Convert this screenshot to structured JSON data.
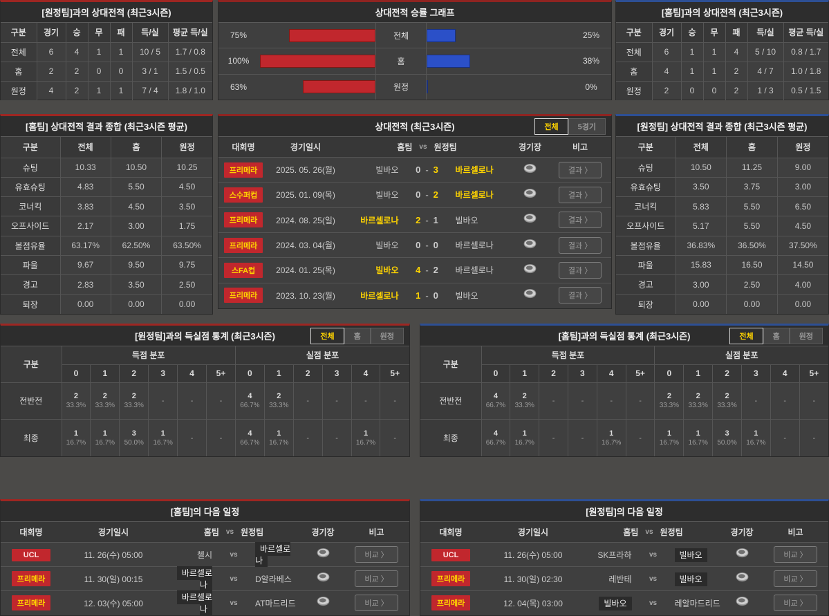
{
  "colors": {
    "accent_red": "#c1272d",
    "accent_blue": "#2b50c8",
    "highlight_yellow": "#ffd400"
  },
  "record_away": {
    "title": "[원정팀]과의 상대전적 (최근3시즌)",
    "headers": [
      "구분",
      "경기",
      "승",
      "무",
      "패",
      "득/실",
      "평균 득/실"
    ],
    "rows": [
      {
        "label": "전체",
        "values": [
          "6",
          "4",
          "1",
          "1",
          "10 / 5",
          "1.7 / 0.8"
        ]
      },
      {
        "label": "홈",
        "values": [
          "2",
          "2",
          "0",
          "0",
          "3 / 1",
          "1.5 / 0.5"
        ]
      },
      {
        "label": "원정",
        "values": [
          "4",
          "2",
          "1",
          "1",
          "7 / 4",
          "1.8 / 1.0"
        ]
      }
    ]
  },
  "record_home": {
    "title": "[홈팀]과의 상대전적 (최근3시즌)",
    "headers": [
      "구분",
      "경기",
      "승",
      "무",
      "패",
      "득/실",
      "평균 득/실"
    ],
    "rows": [
      {
        "label": "전체",
        "values": [
          "6",
          "1",
          "1",
          "4",
          "5 / 10",
          "0.8 / 1.7"
        ]
      },
      {
        "label": "홈",
        "values": [
          "4",
          "1",
          "1",
          "2",
          "4 / 7",
          "1.0 / 1.8"
        ]
      },
      {
        "label": "원정",
        "values": [
          "2",
          "0",
          "0",
          "2",
          "1 / 3",
          "0.5 / 1.5"
        ]
      }
    ]
  },
  "winrate_graph": {
    "title": "상대전적 승률 그래프",
    "chart_data": {
      "type": "bar",
      "categories": [
        "전체",
        "홈",
        "원정"
      ],
      "series": [
        {
          "name": "left-red",
          "values": [
            75,
            100,
            63
          ]
        },
        {
          "name": "right-blue",
          "values": [
            25,
            38,
            0
          ]
        }
      ]
    },
    "rows": [
      {
        "label": "전체",
        "left_pct": "75%",
        "left_value": 75,
        "right_pct": "25%",
        "right_value": 25
      },
      {
        "label": "홈",
        "left_pct": "100%",
        "left_value": 100,
        "right_pct": "38%",
        "right_value": 38
      },
      {
        "label": "원정",
        "left_pct": "63%",
        "left_value": 63,
        "right_pct": "0%",
        "right_value": 0
      }
    ]
  },
  "home_summary": {
    "title": "[홈팀] 상대전적 결과 종합 (최근3시즌 평균)",
    "headers": [
      "구분",
      "전체",
      "홈",
      "원정"
    ],
    "rows": [
      {
        "label": "슈팅",
        "values": [
          "10.33",
          "10.50",
          "10.25"
        ]
      },
      {
        "label": "유효슈팅",
        "values": [
          "4.83",
          "5.50",
          "4.50"
        ]
      },
      {
        "label": "코너킥",
        "values": [
          "3.83",
          "4.50",
          "3.50"
        ]
      },
      {
        "label": "오프사이드",
        "values": [
          "2.17",
          "3.00",
          "1.75"
        ]
      },
      {
        "label": "볼점유율",
        "values": [
          "63.17%",
          "62.50%",
          "63.50%"
        ]
      },
      {
        "label": "파울",
        "values": [
          "9.67",
          "9.50",
          "9.75"
        ]
      },
      {
        "label": "경고",
        "values": [
          "2.83",
          "3.50",
          "2.50"
        ]
      },
      {
        "label": "퇴장",
        "values": [
          "0.00",
          "0.00",
          "0.00"
        ]
      }
    ]
  },
  "away_summary": {
    "title": "[원정팀] 상대전적 결과 종합 (최근3시즌 평균)",
    "headers": [
      "구분",
      "전체",
      "홈",
      "원정"
    ],
    "rows": [
      {
        "label": "슈팅",
        "values": [
          "10.50",
          "11.25",
          "9.00"
        ]
      },
      {
        "label": "유효슈팅",
        "values": [
          "3.50",
          "3.75",
          "3.00"
        ]
      },
      {
        "label": "코너킥",
        "values": [
          "5.83",
          "5.50",
          "6.50"
        ]
      },
      {
        "label": "오프사이드",
        "values": [
          "5.17",
          "5.50",
          "4.50"
        ]
      },
      {
        "label": "볼점유율",
        "values": [
          "36.83%",
          "36.50%",
          "37.50%"
        ]
      },
      {
        "label": "파울",
        "values": [
          "15.83",
          "16.50",
          "14.50"
        ]
      },
      {
        "label": "경고",
        "values": [
          "3.00",
          "2.50",
          "4.00"
        ]
      },
      {
        "label": "퇴장",
        "values": [
          "0.00",
          "0.00",
          "0.00"
        ]
      }
    ]
  },
  "h2h_matches": {
    "title": "상대전적 (최근3시즌)",
    "tabs": [
      "전체",
      "5경기"
    ],
    "headers": {
      "league": "대회명",
      "date": "경기일시",
      "home": "홈팀",
      "vs": "vs",
      "away": "원정팀",
      "stadium": "경기장",
      "note": "비고"
    },
    "button_label": "결과 〉",
    "rows": [
      {
        "league": "프리메라",
        "variant": "primera",
        "date": "2025. 05. 26(월)",
        "home": "빌바오",
        "home_score": "0",
        "away_score": "3",
        "away": "바르셀로나",
        "winner": "away"
      },
      {
        "league": "스수퍼컵",
        "variant": "primera",
        "date": "2025. 01. 09(목)",
        "home": "빌바오",
        "home_score": "0",
        "away_score": "2",
        "away": "바르셀로나",
        "winner": "away"
      },
      {
        "league": "프리메라",
        "variant": "primera",
        "date": "2024. 08. 25(일)",
        "home": "바르셀로나",
        "home_score": "2",
        "away_score": "1",
        "away": "빌바오",
        "winner": "home"
      },
      {
        "league": "프리메라",
        "variant": "primera",
        "date": "2024. 03. 04(월)",
        "home": "빌바오",
        "home_score": "0",
        "away_score": "0",
        "away": "바르셀로나",
        "winner": "none"
      },
      {
        "league": "스FA컵",
        "variant": "primera",
        "date": "2024. 01. 25(목)",
        "home": "빌바오",
        "home_score": "4",
        "away_score": "2",
        "away": "바르셀로나",
        "winner": "home"
      },
      {
        "league": "프리메라",
        "variant": "primera",
        "date": "2023. 10. 23(월)",
        "home": "바르셀로나",
        "home_score": "1",
        "away_score": "0",
        "away": "빌바오",
        "winner": "home"
      }
    ]
  },
  "away_goal_stats": {
    "title": "[원정팀]과의 득실점 통계 (최근3시즌)",
    "tabs": [
      "전체",
      "홈",
      "원정"
    ],
    "col_label": "구분",
    "group_headers": [
      "득점 분포",
      "실점 분포"
    ],
    "bins": [
      "0",
      "1",
      "2",
      "3",
      "4",
      "5+"
    ],
    "empty": "-",
    "rows": [
      {
        "label": "전반전",
        "scored": [
          {
            "n": "2",
            "p": "33.3%"
          },
          {
            "n": "2",
            "p": "33.3%"
          },
          {
            "n": "2",
            "p": "33.3%"
          },
          null,
          null,
          null
        ],
        "conceded": [
          {
            "n": "4",
            "p": "66.7%"
          },
          {
            "n": "2",
            "p": "33.3%"
          },
          null,
          null,
          null,
          null
        ]
      },
      {
        "label": "최종",
        "scored": [
          {
            "n": "1",
            "p": "16.7%"
          },
          {
            "n": "1",
            "p": "16.7%"
          },
          {
            "n": "3",
            "p": "50.0%"
          },
          {
            "n": "1",
            "p": "16.7%"
          },
          null,
          null
        ],
        "conceded": [
          {
            "n": "4",
            "p": "66.7%"
          },
          {
            "n": "1",
            "p": "16.7%"
          },
          null,
          null,
          {
            "n": "1",
            "p": "16.7%"
          },
          null
        ]
      }
    ]
  },
  "home_goal_stats": {
    "title": "[홈팀]과의 득실점 통계 (최근3시즌)",
    "tabs": [
      "전체",
      "홈",
      "원정"
    ],
    "col_label": "구분",
    "group_headers": [
      "득점 분포",
      "실점 분포"
    ],
    "bins": [
      "0",
      "1",
      "2",
      "3",
      "4",
      "5+"
    ],
    "empty": "-",
    "rows": [
      {
        "label": "전반전",
        "scored": [
          {
            "n": "4",
            "p": "66.7%"
          },
          {
            "n": "2",
            "p": "33.3%"
          },
          null,
          null,
          null,
          null
        ],
        "conceded": [
          {
            "n": "2",
            "p": "33.3%"
          },
          {
            "n": "2",
            "p": "33.3%"
          },
          {
            "n": "2",
            "p": "33.3%"
          },
          null,
          null,
          null
        ]
      },
      {
        "label": "최종",
        "scored": [
          {
            "n": "4",
            "p": "66.7%"
          },
          {
            "n": "1",
            "p": "16.7%"
          },
          null,
          null,
          {
            "n": "1",
            "p": "16.7%"
          },
          null
        ],
        "conceded": [
          {
            "n": "1",
            "p": "16.7%"
          },
          {
            "n": "1",
            "p": "16.7%"
          },
          {
            "n": "3",
            "p": "50.0%"
          },
          {
            "n": "1",
            "p": "16.7%"
          },
          null,
          null
        ]
      }
    ]
  },
  "home_schedule": {
    "title": "[홈팀]의 다음 일정",
    "headers": {
      "league": "대회명",
      "date": "경기일시",
      "home": "홈팀",
      "vs": "vs",
      "away": "원정팀",
      "stadium": "경기장",
      "note": "비고"
    },
    "button_label": "비교 〉",
    "rows": [
      {
        "league": "UCL",
        "variant": "ucl",
        "date": "11. 26(수) 05:00",
        "home": "첼시",
        "away": "바르셀로나",
        "highlight": "away"
      },
      {
        "league": "프리메라",
        "variant": "primera",
        "date": "11. 30(일) 00:15",
        "home": "바르셀로나",
        "away": "D알라베스",
        "highlight": "home"
      },
      {
        "league": "프리메라",
        "variant": "primera",
        "date": "12. 03(수) 05:00",
        "home": "바르셀로나",
        "away": "AT마드리드",
        "highlight": "home"
      }
    ]
  },
  "away_schedule": {
    "title": "[원정팀]의 다음 일정",
    "headers": {
      "league": "대회명",
      "date": "경기일시",
      "home": "홈팀",
      "vs": "vs",
      "away": "원정팀",
      "stadium": "경기장",
      "note": "비고"
    },
    "button_label": "비교 〉",
    "rows": [
      {
        "league": "UCL",
        "variant": "ucl",
        "date": "11. 26(수) 05:00",
        "home": "SK프라하",
        "away": "빌바오",
        "highlight": "away"
      },
      {
        "league": "프리메라",
        "variant": "primera",
        "date": "11. 30(일) 02:30",
        "home": "레반테",
        "away": "빌바오",
        "highlight": "away"
      },
      {
        "league": "프리메라",
        "variant": "primera",
        "date": "12. 04(목) 03:00",
        "home": "빌바오",
        "away": "레알마드리드",
        "highlight": "home"
      }
    ]
  }
}
